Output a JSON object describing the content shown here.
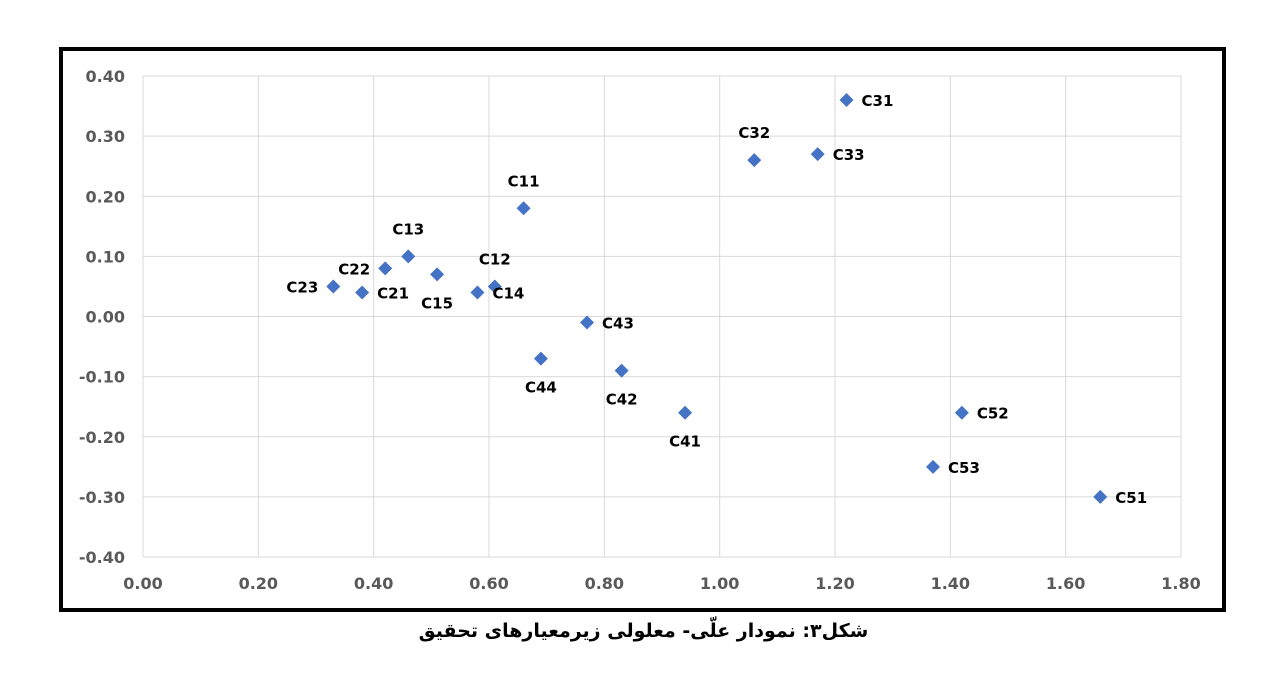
{
  "caption": "شکل۳: نمودار علّی- معلولی زیرمعیارهای تحقیق",
  "colors": {
    "marker": "#4472C4",
    "grid": "#D9D9D9",
    "tick": "#595959",
    "label": "#000000",
    "frame": "#000000"
  },
  "chart_data": {
    "type": "scatter",
    "title": "",
    "xlabel": "",
    "ylabel": "",
    "xlim": [
      0,
      1.8
    ],
    "ylim": [
      -0.4,
      0.4
    ],
    "x_ticks": [
      0,
      0.2,
      0.4,
      0.6,
      0.8,
      1.0,
      1.2,
      1.4,
      1.6,
      1.8
    ],
    "y_ticks": [
      -0.4,
      -0.3,
      -0.2,
      -0.1,
      0,
      0.1,
      0.2,
      0.3,
      0.4
    ],
    "grid": true,
    "marker": "diamond",
    "points": [
      {
        "label": "C11",
        "x": 0.66,
        "y": 0.18,
        "label_pos": "above"
      },
      {
        "label": "C12",
        "x": 0.61,
        "y": 0.05,
        "label_pos": "above"
      },
      {
        "label": "C13",
        "x": 0.46,
        "y": 0.1,
        "label_pos": "above"
      },
      {
        "label": "C14",
        "x": 0.58,
        "y": 0.04,
        "label_pos": "right"
      },
      {
        "label": "C15",
        "x": 0.51,
        "y": 0.07,
        "label_pos": "below"
      },
      {
        "label": "C21",
        "x": 0.38,
        "y": 0.04,
        "label_pos": "right"
      },
      {
        "label": "C22",
        "x": 0.42,
        "y": 0.08,
        "label_pos": "left"
      },
      {
        "label": "C23",
        "x": 0.33,
        "y": 0.05,
        "label_pos": "left"
      },
      {
        "label": "C31",
        "x": 1.22,
        "y": 0.36,
        "label_pos": "right"
      },
      {
        "label": "C32",
        "x": 1.06,
        "y": 0.26,
        "label_pos": "above"
      },
      {
        "label": "C33",
        "x": 1.17,
        "y": 0.27,
        "label_pos": "right"
      },
      {
        "label": "C41",
        "x": 0.94,
        "y": -0.16,
        "label_pos": "below"
      },
      {
        "label": "C42",
        "x": 0.83,
        "y": -0.09,
        "label_pos": "below"
      },
      {
        "label": "C43",
        "x": 0.77,
        "y": -0.01,
        "label_pos": "right"
      },
      {
        "label": "C44",
        "x": 0.69,
        "y": -0.07,
        "label_pos": "below"
      },
      {
        "label": "C51",
        "x": 1.66,
        "y": -0.3,
        "label_pos": "right"
      },
      {
        "label": "C52",
        "x": 1.42,
        "y": -0.16,
        "label_pos": "right"
      },
      {
        "label": "C53",
        "x": 1.37,
        "y": -0.25,
        "label_pos": "right"
      }
    ]
  }
}
